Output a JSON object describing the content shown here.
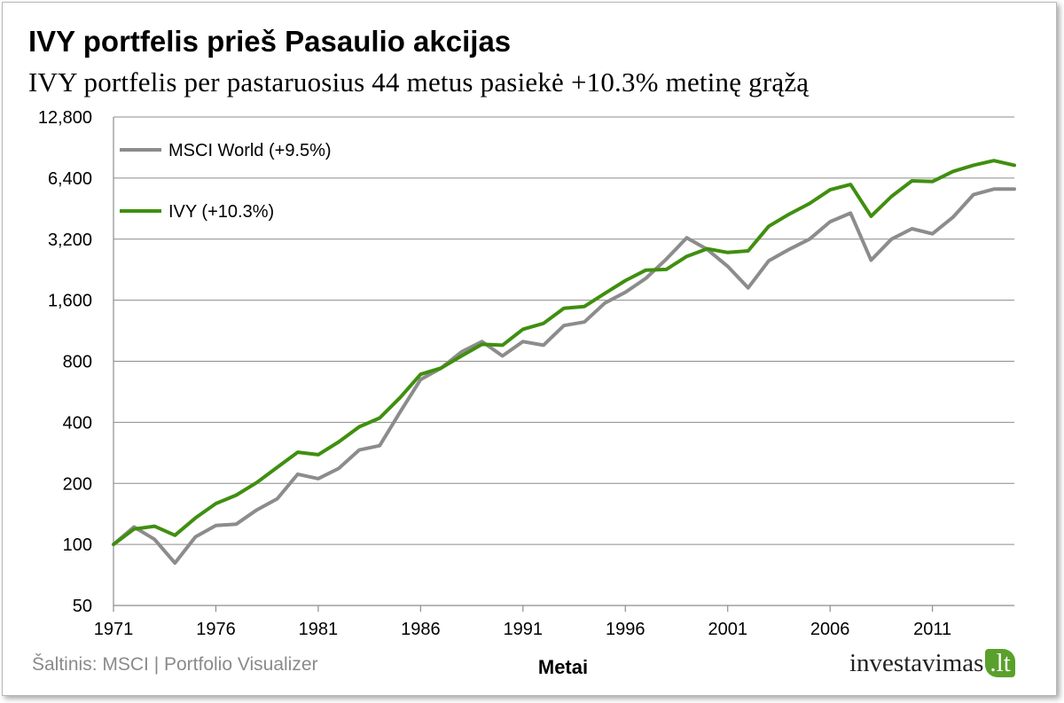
{
  "title": "IVY portfelis prieš Pasaulio akcijas",
  "subtitle": "IVY portfelis per pastaruosius  44 metus pasiekė +10.3% metinę grąžą",
  "source": "Šaltinis: MSCI | Portfolio Visualizer",
  "brand": {
    "name": "investavimas",
    "tld": ".lt"
  },
  "colors": {
    "msci": "#8c8c8c",
    "ivy": "#3f8f0f",
    "grid": "#8c8c8c"
  },
  "chart_data": {
    "type": "line",
    "xlabel": "Metai",
    "ylabel": "",
    "yscale": "log2",
    "ylim": [
      50,
      12800
    ],
    "xlim": [
      1971,
      2015
    ],
    "y_ticks": [
      50,
      100,
      200,
      400,
      800,
      1600,
      3200,
      6400,
      12800
    ],
    "y_tick_labels": [
      "50",
      "100",
      "200",
      "400",
      "800",
      "1,600",
      "3,200",
      "6,400",
      "12,800"
    ],
    "x_ticks": [
      1971,
      1976,
      1981,
      1986,
      1991,
      1996,
      2001,
      2006,
      2011
    ],
    "x_tick_labels": [
      "1971",
      "1976",
      "1981",
      "1986",
      "1991",
      "1996",
      "2001",
      "2006",
      "2011"
    ],
    "grid": true,
    "legend_position": "top-left",
    "x": [
      1971,
      1972,
      1973,
      1974,
      1975,
      1976,
      1977,
      1978,
      1979,
      1980,
      1981,
      1982,
      1983,
      1984,
      1985,
      1986,
      1987,
      1988,
      1989,
      1990,
      1991,
      1992,
      1993,
      1994,
      1995,
      1996,
      1997,
      1998,
      1999,
      2000,
      2001,
      2002,
      2003,
      2004,
      2005,
      2006,
      2007,
      2008,
      2009,
      2010,
      2011,
      2012,
      2013,
      2014,
      2015
    ],
    "series": [
      {
        "name": "MSCI World (+9.5%)",
        "key": "msci",
        "values": [
          100,
          122,
          106,
          81,
          109,
          124,
          126,
          148,
          168,
          222,
          211,
          237,
          292,
          307,
          450,
          650,
          740,
          890,
          1000,
          850,
          1000,
          960,
          1200,
          1250,
          1550,
          1750,
          2050,
          2550,
          3250,
          2850,
          2350,
          1840,
          2500,
          2850,
          3200,
          3900,
          4300,
          2520,
          3200,
          3600,
          3400,
          4100,
          5300,
          5650,
          5650
        ]
      },
      {
        "name": "IVY (+10.3%)",
        "key": "ivy",
        "values": [
          100,
          119,
          123,
          111,
          135,
          159,
          175,
          202,
          240,
          285,
          277,
          320,
          380,
          420,
          530,
          690,
          740,
          850,
          970,
          960,
          1150,
          1230,
          1460,
          1490,
          1730,
          2000,
          2250,
          2270,
          2630,
          2870,
          2750,
          2800,
          3700,
          4250,
          4800,
          5600,
          5950,
          4150,
          5200,
          6200,
          6150,
          6900,
          7400,
          7800,
          7400
        ]
      }
    ]
  }
}
